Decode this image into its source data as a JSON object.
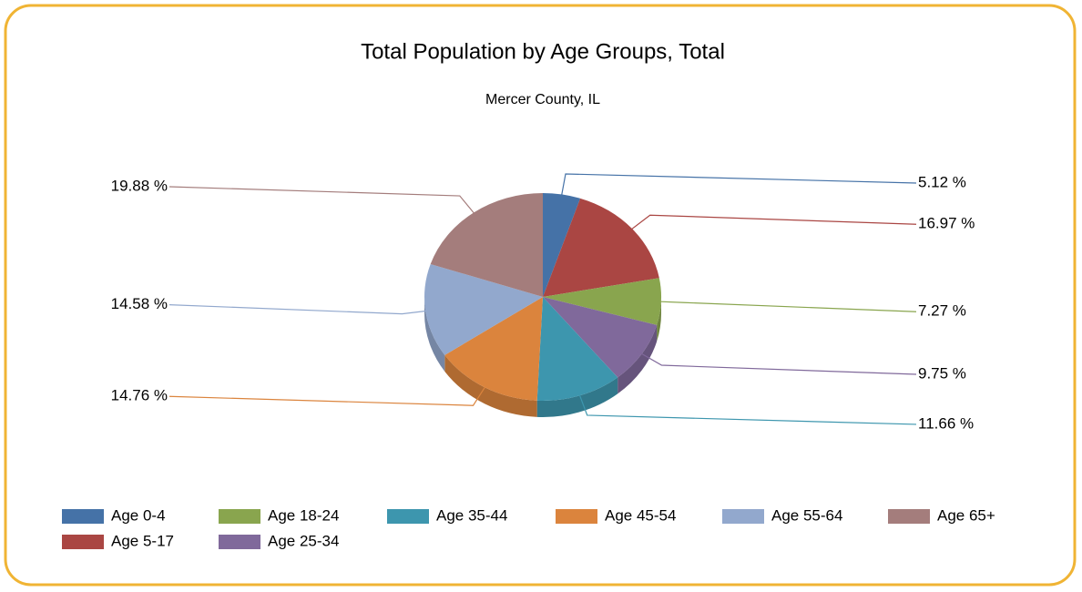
{
  "chart_data": {
    "type": "pie",
    "title": "Total Population by Age Groups, Total",
    "subtitle": "Mercer County, IL",
    "categories": [
      "Age 0-4",
      "Age 5-17",
      "Age 18-24",
      "Age 25-34",
      "Age 35-44",
      "Age 45-54",
      "Age 55-64",
      "Age 65+"
    ],
    "values": [
      5.12,
      16.97,
      7.27,
      9.75,
      11.66,
      14.76,
      14.58,
      19.88
    ],
    "value_labels": [
      "5.12 %",
      "16.97 %",
      "7.27 %",
      "9.75 %",
      "11.66 %",
      "14.76 %",
      "14.58 %",
      "19.88 %"
    ],
    "colors": [
      "#4572a7",
      "#aa4643",
      "#89a54e",
      "#80699b",
      "#3d96ae",
      "#db843d",
      "#92a8cd",
      "#a47d7c"
    ],
    "legend": "bottom"
  }
}
